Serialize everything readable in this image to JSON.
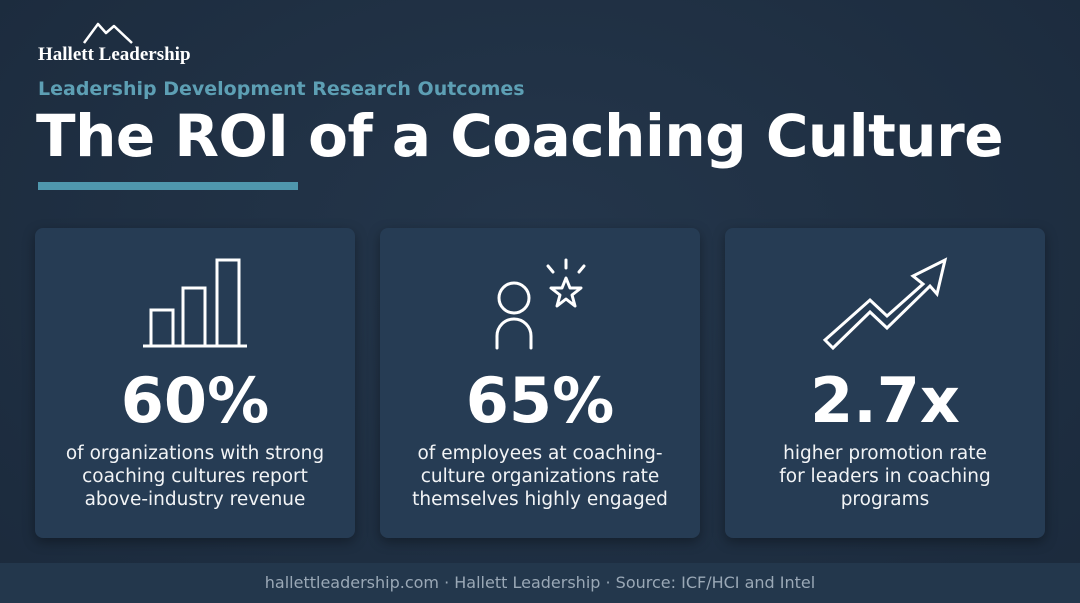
{
  "header": {
    "brand": "Hallett Leadership",
    "subtitle": "Leadership Development Research Outcomes",
    "title": "The ROI of a Coaching Culture"
  },
  "cards": [
    {
      "stat": "60%",
      "lines": [
        "of organizations with strong",
        "coaching cultures report",
        "above-industry revenue"
      ]
    },
    {
      "stat": "65%",
      "lines": [
        "of employees at coaching-",
        "culture organizations rate",
        "themselves highly engaged"
      ]
    },
    {
      "stat": "2.7x",
      "lines": [
        "higher promotion rate",
        "for leaders in coaching",
        "programs"
      ]
    }
  ],
  "footer": {
    "text": "hallettleadership.com · Hallett Leadership · Source: ICF/HCI and Intel"
  }
}
